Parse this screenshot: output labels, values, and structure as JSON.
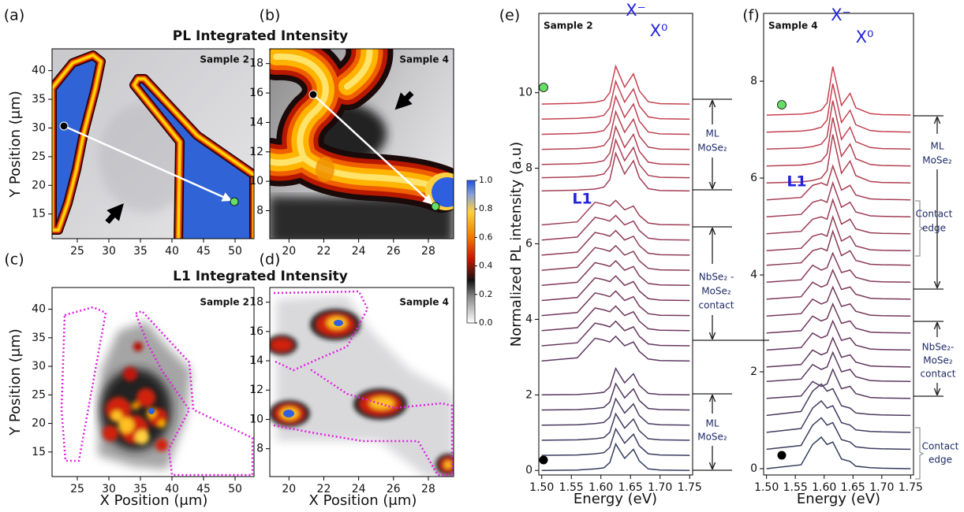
{
  "chart_data": [
    {
      "type": "heatmap",
      "panel": "(a)",
      "title": "PL Integrated Intensity",
      "annotation": "Sample 2",
      "ylabel": "Y Position (μm)",
      "xlim": [
        21,
        53
      ],
      "xticks": [
        25,
        30,
        35,
        40,
        45,
        50
      ],
      "ylim": [
        10.7,
        43.8
      ],
      "yticks": [
        15,
        20,
        25,
        30,
        35,
        40
      ]
    },
    {
      "type": "heatmap",
      "panel": "(b)",
      "annotation": "Sample 4",
      "xlim": [
        18.9,
        29.45
      ],
      "xticks": [
        20,
        22,
        24,
        26,
        28
      ],
      "ylim": [
        6.1,
        19
      ],
      "yticks": [
        8,
        10,
        12,
        14,
        16,
        18
      ],
      "colorbar": {
        "ylim": [
          0,
          1
        ],
        "yticks": [
          {
            "value": 0,
            "label": "0.0"
          },
          {
            "value": 0.2,
            "label": "0.2"
          },
          {
            "value": 0.4,
            "label": "0.4"
          },
          {
            "value": 0.6,
            "label": "0.6"
          },
          {
            "value": 0.8,
            "label": "0.8"
          },
          {
            "value": 1,
            "label": "1.0"
          }
        ]
      }
    },
    {
      "type": "heatmap",
      "panel": "(c)",
      "title": "L1 Integrated Intensity",
      "annotation": "Sample 2",
      "xlabel": "X Position (μm)",
      "ylabel": "Y Position (μm)",
      "xlim": [
        21,
        53
      ],
      "xticks": [
        25,
        30,
        35,
        40,
        45,
        50
      ],
      "ylim": [
        10.7,
        43.8
      ],
      "yticks": [
        15,
        20,
        25,
        30,
        35,
        40
      ]
    },
    {
      "type": "heatmap",
      "panel": "(d)",
      "annotation": "Sample 4",
      "xlabel": "X Position (μm)",
      "xlim": [
        18.9,
        29.45
      ],
      "xticks": [
        20,
        22,
        24,
        26,
        28
      ],
      "ylim": [
        6.1,
        19
      ],
      "yticks": [
        8,
        10,
        12,
        14,
        16,
        18
      ]
    },
    {
      "type": "line",
      "panel": "(e)",
      "annotation": "Sample 2",
      "xlabel": "Energy (eV)",
      "ylabel": "Normalized PL intensity (a.u)",
      "peak_labels": [
        "X⁻",
        "X⁰"
      ],
      "feature_label": "L1",
      "groups": [
        [
          "ML",
          "MoSe₂"
        ],
        [
          "NbSe₂ -",
          "MoSe₂",
          "contact"
        ],
        [
          "ML",
          "MoSe₂"
        ]
      ],
      "xlim": [
        1.495,
        1.755
      ],
      "xticks": [
        {
          "value": 1.5,
          "label": "1.50"
        },
        {
          "value": 1.55,
          "label": "1.55"
        },
        {
          "value": 1.6,
          "label": "1.60"
        },
        {
          "value": 1.65,
          "label": "1.65"
        },
        {
          "value": 1.7,
          "label": "1.70"
        },
        {
          "value": 1.75,
          "label": "1.75"
        }
      ],
      "ylim": [
        -0.12,
        12.1
      ],
      "yticks": [
        0,
        2,
        4,
        6,
        8,
        10
      ],
      "x": [
        1.5,
        1.56,
        1.59,
        1.605,
        1.615,
        1.625,
        1.64,
        1.655,
        1.665,
        1.68,
        1.7,
        1.75
      ],
      "series": [
        {
          "color": "#c8424f",
          "values": [
            9.7,
            9.72,
            9.75,
            9.8,
            10,
            10.7,
            10.15,
            10.5,
            10.05,
            9.76,
            9.71,
            9.7
          ]
        },
        {
          "color": "#c34250",
          "values": [
            9.3,
            9.32,
            9.35,
            9.4,
            9.6,
            10.3,
            9.75,
            10.1,
            9.65,
            9.36,
            9.31,
            9.3
          ]
        },
        {
          "color": "#be4151",
          "values": [
            8.9,
            8.92,
            8.95,
            9,
            9.2,
            9.9,
            9.35,
            9.7,
            9.25,
            8.96,
            8.91,
            8.9
          ]
        },
        {
          "color": "#b84152",
          "values": [
            8.5,
            8.52,
            8.55,
            8.6,
            8.8,
            9.5,
            8.95,
            9.3,
            8.85,
            8.56,
            8.51,
            8.5
          ]
        },
        {
          "color": "#b24053",
          "values": [
            8.1,
            8.12,
            8.15,
            8.2,
            8.4,
            9.1,
            8.55,
            8.9,
            8.45,
            8.16,
            8.11,
            8.1
          ]
        },
        {
          "color": "#ab3f54",
          "values": [
            7.75,
            7.77,
            7.8,
            7.85,
            8.05,
            8.75,
            8.2,
            8.55,
            8.1,
            7.81,
            7.76,
            7.75
          ]
        },
        {
          "color": "#a43e55",
          "values": [
            7.4,
            7.42,
            7.45,
            7.5,
            7.7,
            8.4,
            7.85,
            8.2,
            7.75,
            7.46,
            7.41,
            7.4
          ]
        },
        {
          "color": "#9d3d56",
          "values": [
            6.5,
            6.58,
            7.1,
            7.05,
            7,
            7.15,
            6.9,
            7,
            6.75,
            6.55,
            6.51,
            6.5
          ]
        },
        {
          "color": "#963c57",
          "values": [
            6.1,
            6.18,
            6.7,
            6.65,
            6.6,
            6.75,
            6.5,
            6.6,
            6.35,
            6.15,
            6.11,
            6.1
          ]
        },
        {
          "color": "#8f3b58",
          "values": [
            5.7,
            5.78,
            6.3,
            6.25,
            6.2,
            6.35,
            6.1,
            6.2,
            5.95,
            5.75,
            5.71,
            5.7
          ]
        },
        {
          "color": "#883a59",
          "values": [
            5.3,
            5.38,
            5.9,
            5.85,
            5.8,
            5.95,
            5.7,
            5.8,
            5.55,
            5.35,
            5.31,
            5.3
          ]
        },
        {
          "color": "#81395a",
          "values": [
            4.9,
            4.98,
            5.5,
            5.45,
            5.4,
            5.55,
            5.3,
            5.4,
            5.15,
            4.95,
            4.91,
            4.9
          ]
        },
        {
          "color": "#7a385b",
          "values": [
            4.5,
            4.58,
            5.1,
            5.05,
            5,
            5.15,
            4.9,
            5,
            4.75,
            4.55,
            4.51,
            4.5
          ]
        },
        {
          "color": "#73375c",
          "values": [
            4.1,
            4.18,
            4.7,
            4.65,
            4.6,
            4.75,
            4.5,
            4.6,
            4.35,
            4.15,
            4.11,
            4.1
          ]
        },
        {
          "color": "#6c365d",
          "values": [
            3.7,
            3.78,
            4.3,
            4.25,
            4.2,
            4.35,
            4.1,
            4.2,
            3.95,
            3.75,
            3.71,
            3.7
          ]
        },
        {
          "color": "#65365e",
          "values": [
            3.3,
            3.38,
            3.9,
            3.85,
            3.8,
            3.95,
            3.7,
            3.8,
            3.55,
            3.35,
            3.31,
            3.3
          ]
        },
        {
          "color": "#5e365f",
          "values": [
            2.9,
            2.98,
            3.5,
            3.45,
            3.4,
            3.55,
            3.3,
            3.4,
            3.15,
            2.95,
            2.91,
            2.9
          ]
        },
        {
          "color": "#573760",
          "values": [
            2,
            2.01,
            2.04,
            2.07,
            2.21,
            2.7,
            2.32,
            2.56,
            2.25,
            2.04,
            2.01,
            2
          ]
        },
        {
          "color": "#503860",
          "values": [
            1.6,
            1.61,
            1.64,
            1.67,
            1.81,
            2.3,
            1.92,
            2.16,
            1.85,
            1.64,
            1.61,
            1.6
          ]
        },
        {
          "color": "#493a60",
          "values": [
            1.2,
            1.21,
            1.24,
            1.27,
            1.41,
            1.9,
            1.52,
            1.76,
            1.45,
            1.24,
            1.21,
            1.2
          ]
        },
        {
          "color": "#423b5f",
          "values": [
            0.8,
            0.81,
            0.84,
            0.87,
            1.01,
            1.5,
            1.12,
            1.36,
            1.05,
            0.84,
            0.81,
            0.8
          ]
        },
        {
          "color": "#3b3c5e",
          "values": [
            0.4,
            0.41,
            0.44,
            0.47,
            0.61,
            1.1,
            0.72,
            0.96,
            0.65,
            0.44,
            0.41,
            0.4
          ]
        },
        {
          "color": "#343d5c",
          "values": [
            0,
            0.01,
            0.04,
            0.07,
            0.21,
            0.7,
            0.32,
            0.56,
            0.25,
            0.04,
            0.01,
            0
          ]
        }
      ]
    },
    {
      "type": "line",
      "panel": "(f)",
      "annotation": "Sample 4",
      "xlabel": "Energy (eV)",
      "peak_labels": [
        "X⁻",
        "X⁰"
      ],
      "feature_label": "L1",
      "groups": [
        [
          "ML",
          "MoSe₂"
        ],
        [
          "Contact",
          "edge"
        ],
        [
          "NbSe₂-",
          "MoSe₂",
          "contact"
        ],
        [
          "Contact",
          "edge"
        ]
      ],
      "xlim": [
        1.495,
        1.755
      ],
      "xticks": [
        {
          "value": 1.5,
          "label": "1.50"
        },
        {
          "value": 1.55,
          "label": "1.55"
        },
        {
          "value": 1.6,
          "label": "1.60"
        },
        {
          "value": 1.65,
          "label": "1.65"
        },
        {
          "value": 1.7,
          "label": "1.70"
        },
        {
          "value": 1.75,
          "label": "1.75"
        }
      ],
      "ylim": [
        -0.13,
        9.4
      ],
      "yticks": [
        0,
        2,
        4,
        6,
        8
      ],
      "x": [
        1.5,
        1.56,
        1.58,
        1.595,
        1.605,
        1.615,
        1.63,
        1.645,
        1.655,
        1.68,
        1.7,
        1.75
      ],
      "series": [
        {
          "color": "#c8424f",
          "values": [
            7.3,
            7.32,
            7.35,
            7.4,
            7.55,
            8.3,
            7.5,
            7.75,
            7.45,
            7.33,
            7.31,
            7.3
          ]
        },
        {
          "color": "#c24250",
          "values": [
            6.95,
            6.97,
            7,
            7.05,
            7.2,
            7.95,
            7.15,
            7.4,
            7.1,
            6.98,
            6.96,
            6.95
          ]
        },
        {
          "color": "#bc4151",
          "values": [
            6.6,
            6.62,
            6.65,
            6.7,
            6.85,
            7.6,
            6.8,
            7.05,
            6.75,
            6.63,
            6.61,
            6.6
          ]
        },
        {
          "color": "#b54052",
          "values": [
            6.25,
            6.27,
            6.3,
            6.35,
            6.5,
            7.25,
            6.45,
            6.7,
            6.4,
            6.28,
            6.26,
            6.25
          ]
        },
        {
          "color": "#ae3f53",
          "values": [
            5.9,
            5.92,
            5.95,
            6,
            6.15,
            6.9,
            6.1,
            6.35,
            6.05,
            5.93,
            5.91,
            5.9
          ]
        },
        {
          "color": "#a73e54",
          "values": [
            5.55,
            5.6,
            5.85,
            5.9,
            5.85,
            6.25,
            5.75,
            5.85,
            5.65,
            5.57,
            5.56,
            5.55
          ]
        },
        {
          "color": "#a03d55",
          "values": [
            5.2,
            5.25,
            5.5,
            5.55,
            5.5,
            5.9,
            5.4,
            5.5,
            5.3,
            5.22,
            5.21,
            5.2
          ]
        },
        {
          "color": "#993c56",
          "values": [
            4.85,
            4.9,
            5.15,
            5.2,
            5.15,
            5.55,
            5.05,
            5.15,
            4.95,
            4.87,
            4.86,
            4.85
          ]
        },
        {
          "color": "#923b57",
          "values": [
            4.5,
            4.55,
            4.8,
            4.85,
            4.8,
            5.2,
            4.7,
            4.8,
            4.6,
            4.52,
            4.51,
            4.5
          ]
        },
        {
          "color": "#8b3a58",
          "values": [
            4.2,
            4.25,
            4.5,
            4.55,
            4.5,
            4.9,
            4.4,
            4.5,
            4.3,
            4.22,
            4.21,
            4.2
          ]
        },
        {
          "color": "#843959",
          "values": [
            3.85,
            3.9,
            4.2,
            4.1,
            4.15,
            4.45,
            4.05,
            4.1,
            3.95,
            3.87,
            3.86,
            3.85
          ]
        },
        {
          "color": "#7d385a",
          "values": [
            3.5,
            3.55,
            3.85,
            3.75,
            3.8,
            4.1,
            3.7,
            3.75,
            3.6,
            3.52,
            3.51,
            3.5
          ]
        },
        {
          "color": "#76375b",
          "values": [
            3.15,
            3.2,
            3.5,
            3.4,
            3.45,
            3.75,
            3.35,
            3.4,
            3.25,
            3.17,
            3.16,
            3.15
          ]
        },
        {
          "color": "#6f365c",
          "values": [
            2.8,
            2.85,
            3.15,
            3.05,
            3.1,
            3.4,
            3,
            3.05,
            2.9,
            2.82,
            2.81,
            2.8
          ]
        },
        {
          "color": "#68365d",
          "values": [
            2.45,
            2.5,
            2.8,
            2.7,
            2.75,
            3.05,
            2.65,
            2.7,
            2.55,
            2.47,
            2.46,
            2.45
          ]
        },
        {
          "color": "#61365e",
          "values": [
            2.1,
            2.15,
            2.45,
            2.35,
            2.4,
            2.7,
            2.3,
            2.35,
            2.2,
            2.12,
            2.11,
            2.1
          ]
        },
        {
          "color": "#5a375f",
          "values": [
            1.8,
            1.85,
            2.15,
            2.05,
            2.1,
            2.4,
            2,
            2.05,
            1.9,
            1.82,
            1.81,
            1.8
          ]
        },
        {
          "color": "#533860",
          "values": [
            1.45,
            1.5,
            1.8,
            1.7,
            1.75,
            2.05,
            1.65,
            1.7,
            1.55,
            1.47,
            1.46,
            1.45
          ]
        },
        {
          "color": "#4a3a60",
          "values": [
            1.1,
            1.18,
            1.6,
            1.75,
            1.6,
            1.65,
            1.3,
            1.25,
            1.15,
            1.12,
            1.11,
            1.1
          ]
        },
        {
          "color": "#433b5f",
          "values": [
            0.75,
            0.83,
            1.25,
            1.4,
            1.25,
            1.3,
            0.95,
            0.9,
            0.8,
            0.77,
            0.76,
            0.75
          ]
        },
        {
          "color": "#3b3c5e",
          "values": [
            0.4,
            0.48,
            0.9,
            1.05,
            0.9,
            0.95,
            0.6,
            0.55,
            0.45,
            0.42,
            0.41,
            0.4
          ]
        },
        {
          "color": "#313d5b",
          "values": [
            0,
            0.08,
            0.5,
            0.65,
            0.5,
            0.55,
            0.2,
            0.15,
            0.05,
            0.02,
            0.01,
            0
          ]
        }
      ]
    }
  ]
}
